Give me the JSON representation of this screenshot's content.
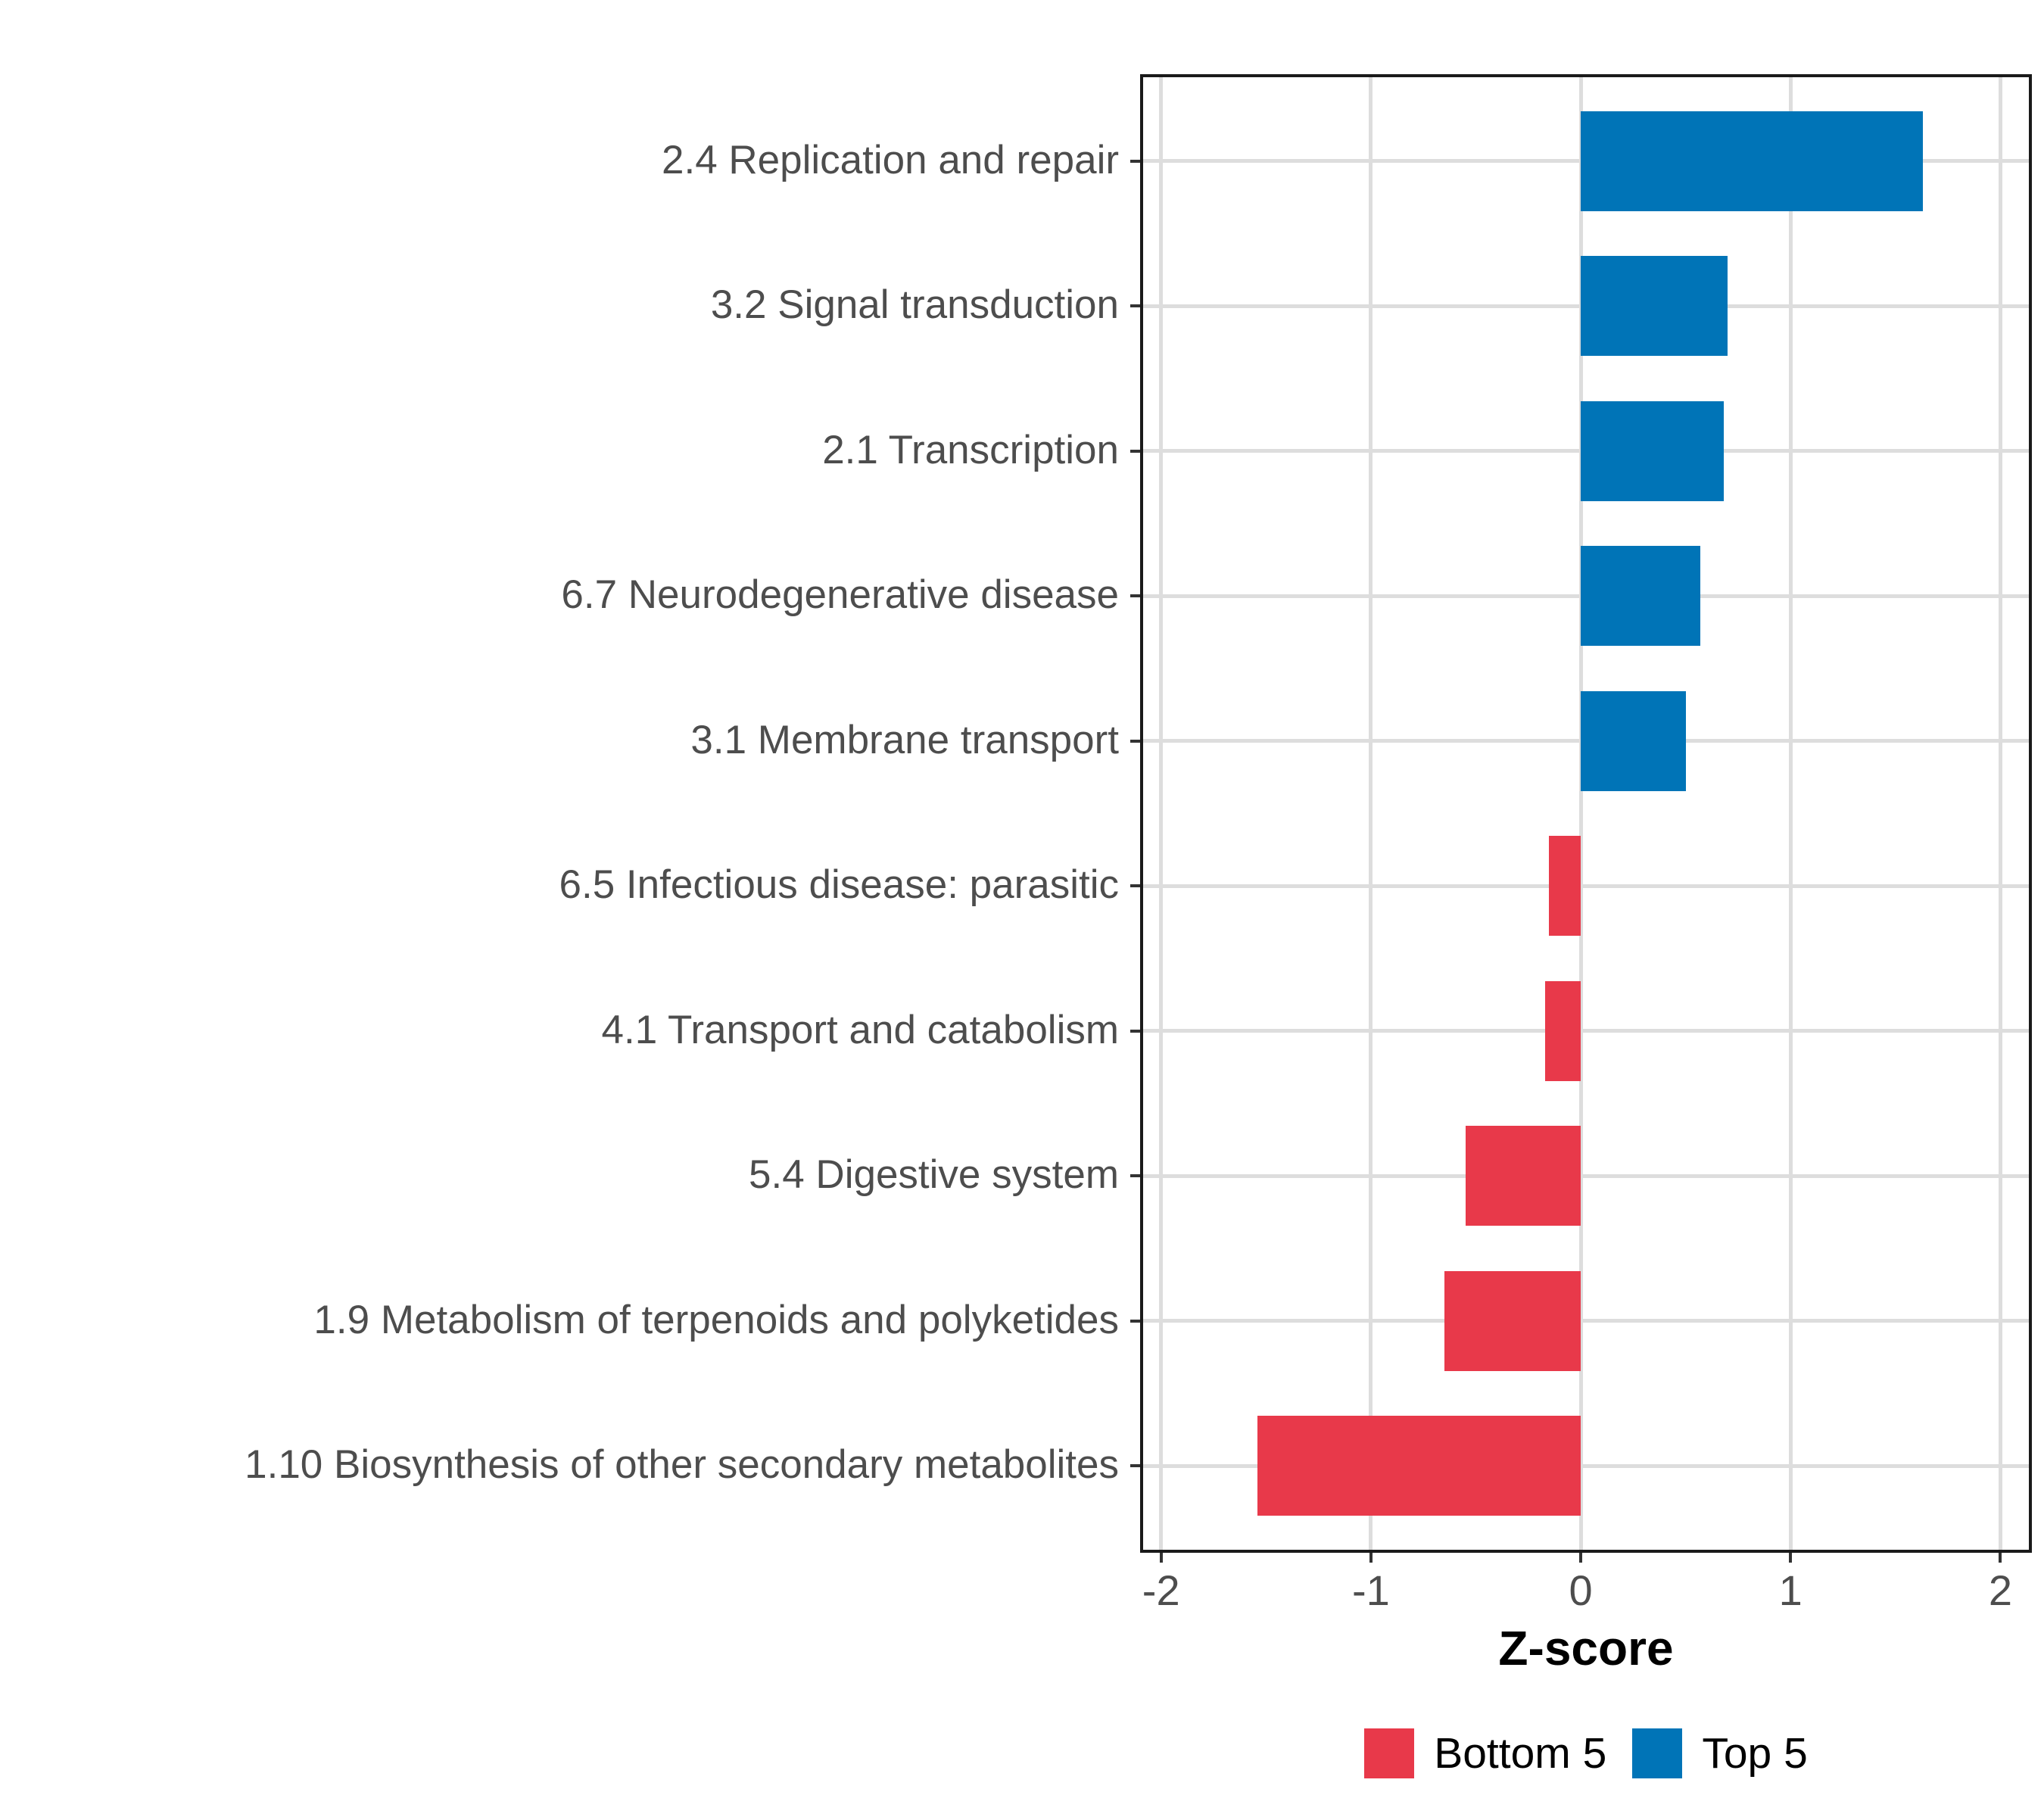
{
  "chart_data": {
    "type": "bar",
    "orientation": "horizontal",
    "title": "",
    "xlabel": "Z-score",
    "ylabel": "",
    "categories": [
      "2.4 Replication and repair",
      "3.2 Signal transduction",
      "2.1 Transcription",
      "6.7 Neurodegenerative disease",
      "3.1 Membrane transport",
      "6.5 Infectious disease: parasitic",
      "4.1 Transport and catabolism",
      "5.4 Digestive system",
      "1.9 Metabolism of terpenoids and polyketides",
      "1.10 Biosynthesis of other secondary metabolites"
    ],
    "values": [
      1.63,
      0.7,
      0.68,
      0.57,
      0.5,
      -0.15,
      -0.17,
      -0.55,
      -0.65,
      -1.54
    ],
    "groups": [
      "Top 5",
      "Top 5",
      "Top 5",
      "Top 5",
      "Top 5",
      "Bottom 5",
      "Bottom 5",
      "Bottom 5",
      "Bottom 5",
      "Bottom 5"
    ],
    "x_ticks": [
      -2,
      -1,
      0,
      1,
      2
    ],
    "x_tick_labels": [
      "-2",
      "-1",
      "0",
      "1",
      "2"
    ],
    "xlim": [
      -2.1,
      2.15
    ],
    "grid": "major-only",
    "legend_position": "bottom"
  },
  "axis": {
    "x_title": "Z-score"
  },
  "legend": {
    "items": [
      {
        "label": "Bottom 5",
        "color": "#e8394a"
      },
      {
        "label": "Top 5",
        "color": "#0074b7"
      }
    ]
  },
  "colors": {
    "top5": "#0074b7",
    "bottom5": "#e8394a",
    "gridline": "#dddddd",
    "panel_border": "#1a1a1a",
    "axis_text": "#4d4d4d",
    "tick_mark": "#333333",
    "title_text": "#000000",
    "background": "#ffffff"
  }
}
